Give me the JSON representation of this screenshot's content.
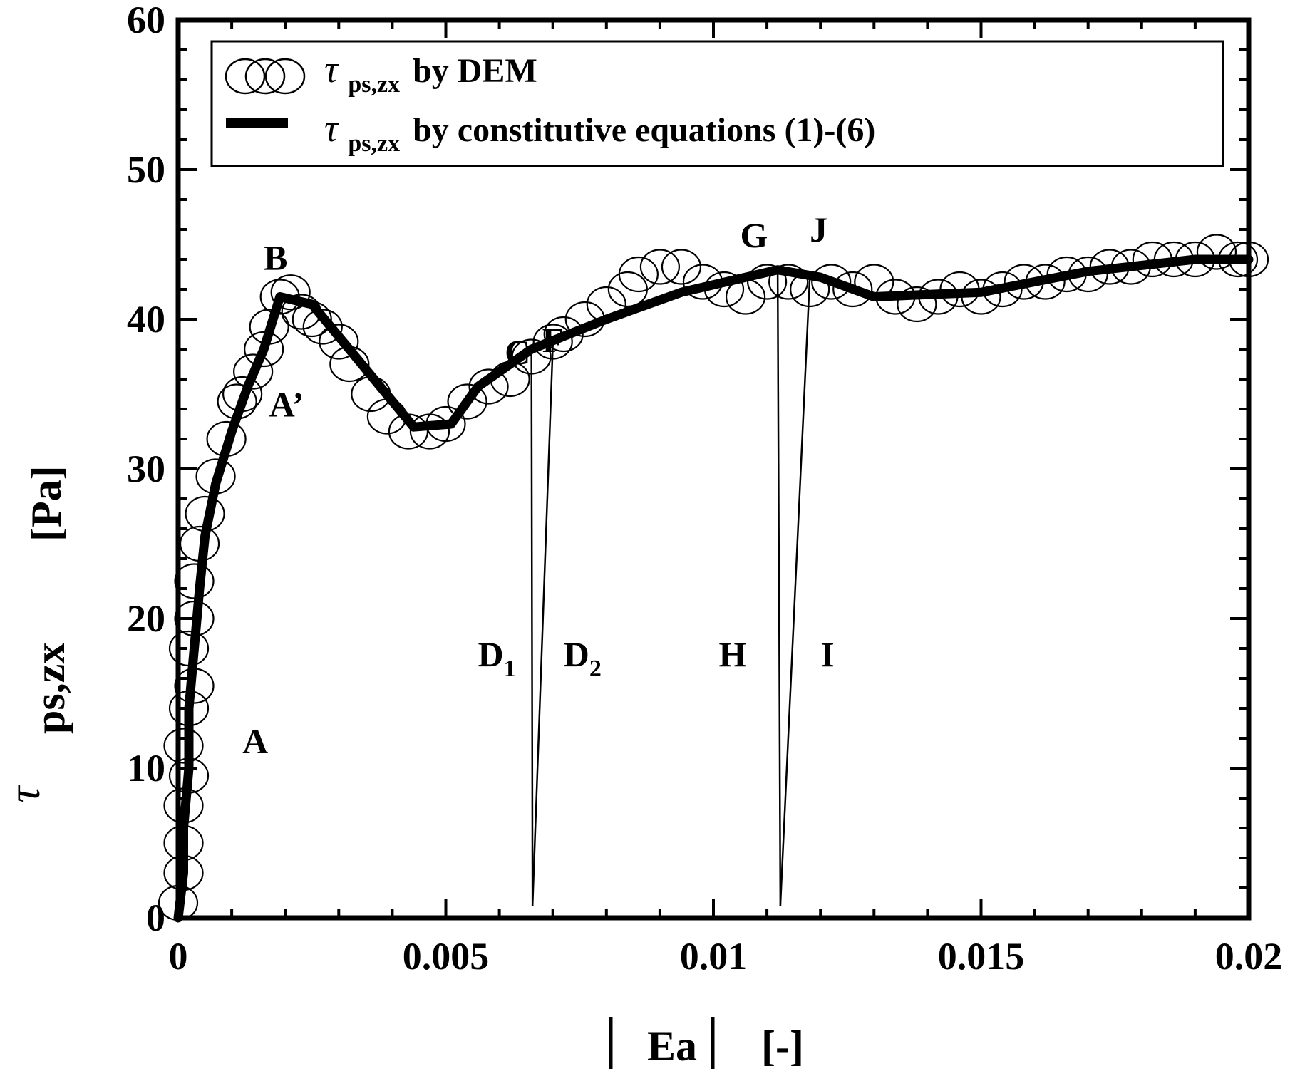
{
  "chart_data": {
    "type": "line",
    "xlabel": "|Ea|  [-]",
    "xlabel_parts": {
      "main": "Ea",
      "unit": "[-]"
    },
    "ylabel_parts": {
      "symbol": "τ",
      "sub": "ps,zx",
      "unit": "[Pa]"
    },
    "xlim": [
      0,
      0.02
    ],
    "ylim": [
      0,
      60
    ],
    "x_ticks": [
      0,
      0.005,
      0.01,
      0.015,
      0.02
    ],
    "x_tick_labels": [
      "0",
      "0.005",
      "0.01",
      "0.015",
      "0.02"
    ],
    "y_ticks": [
      0,
      10,
      20,
      30,
      40,
      50,
      60
    ],
    "y_tick_labels": [
      "0",
      "10",
      "20",
      "30",
      "40",
      "50",
      "60"
    ],
    "legend": {
      "placement": "top",
      "entries": [
        {
          "symbol": "τ",
          "sub": "ps,zx",
          "text": "by DEM",
          "marker": "circle"
        },
        {
          "symbol": "τ",
          "sub": "ps,zx",
          "text": "by constitutive equations (1)-(6)",
          "marker": "line"
        }
      ]
    },
    "series": [
      {
        "name": "by DEM",
        "style": "open-circle",
        "points": [
          [
            0.0,
            1.0
          ],
          [
            0.0001,
            3.0
          ],
          [
            0.0001,
            5.0
          ],
          [
            0.0001,
            7.5
          ],
          [
            0.0002,
            9.5
          ],
          [
            0.0001,
            11.5
          ],
          [
            0.0002,
            14.0
          ],
          [
            0.0003,
            15.5
          ],
          [
            0.0002,
            18.0
          ],
          [
            0.0003,
            20.0
          ],
          [
            0.0003,
            22.5
          ],
          [
            0.0004,
            25.0
          ],
          [
            0.0005,
            27.0
          ],
          [
            0.0007,
            29.5
          ],
          [
            0.0009,
            32.0
          ],
          [
            0.0011,
            34.5
          ],
          [
            0.0012,
            35.0
          ],
          [
            0.0014,
            36.5
          ],
          [
            0.0016,
            38.0
          ],
          [
            0.0017,
            39.5
          ],
          [
            0.0019,
            41.5
          ],
          [
            0.0021,
            41.8
          ],
          [
            0.0023,
            40.5
          ],
          [
            0.0025,
            40.0
          ],
          [
            0.0027,
            39.5
          ],
          [
            0.003,
            38.5
          ],
          [
            0.0032,
            37.0
          ],
          [
            0.0036,
            35.0
          ],
          [
            0.0039,
            33.5
          ],
          [
            0.0043,
            32.5
          ],
          [
            0.0047,
            32.5
          ],
          [
            0.005,
            33.0
          ],
          [
            0.0054,
            34.5
          ],
          [
            0.0058,
            35.5
          ],
          [
            0.0062,
            36.0
          ],
          [
            0.0066,
            37.5
          ],
          [
            0.007,
            38.5
          ],
          [
            0.0072,
            39.0
          ],
          [
            0.0076,
            40.0
          ],
          [
            0.008,
            41.0
          ],
          [
            0.0084,
            42.0
          ],
          [
            0.0086,
            43.0
          ],
          [
            0.009,
            43.5
          ],
          [
            0.0094,
            43.5
          ],
          [
            0.0098,
            42.5
          ],
          [
            0.0102,
            42.0
          ],
          [
            0.0106,
            41.5
          ],
          [
            0.011,
            42.5
          ],
          [
            0.0114,
            42.5
          ],
          [
            0.0118,
            42.0
          ],
          [
            0.0122,
            42.5
          ],
          [
            0.0126,
            42.0
          ],
          [
            0.013,
            42.5
          ],
          [
            0.0134,
            41.5
          ],
          [
            0.0138,
            41.0
          ],
          [
            0.0142,
            41.5
          ],
          [
            0.0146,
            42.0
          ],
          [
            0.015,
            41.5
          ],
          [
            0.0154,
            42.0
          ],
          [
            0.0158,
            42.5
          ],
          [
            0.0162,
            42.5
          ],
          [
            0.0166,
            43.0
          ],
          [
            0.017,
            43.0
          ],
          [
            0.0174,
            43.5
          ],
          [
            0.0178,
            43.5
          ],
          [
            0.0182,
            44.0
          ],
          [
            0.0186,
            44.0
          ],
          [
            0.019,
            44.0
          ],
          [
            0.0194,
            44.5
          ],
          [
            0.0198,
            44.0
          ],
          [
            0.02,
            44.0
          ]
        ]
      },
      {
        "name": "by constitutive equations (1)-(6)",
        "style": "thick-line",
        "points": [
          [
            0.0,
            0.0
          ],
          [
            0.0001,
            3.0
          ],
          [
            0.0001,
            6.0
          ],
          [
            0.0002,
            10.0
          ],
          [
            0.0002,
            14.0
          ],
          [
            0.0003,
            18.0
          ],
          [
            0.0004,
            22.0
          ],
          [
            0.0005,
            25.5
          ],
          [
            0.0007,
            29.0
          ],
          [
            0.001,
            32.5
          ],
          [
            0.0013,
            35.5
          ],
          [
            0.0016,
            38.0
          ],
          [
            0.0019,
            41.5
          ],
          [
            0.0025,
            41.0
          ],
          [
            0.0044,
            32.8
          ],
          [
            0.0051,
            33.0
          ],
          [
            0.0056,
            35.5
          ],
          [
            0.0066,
            38.0
          ],
          [
            0.008,
            40.0
          ],
          [
            0.0094,
            41.8
          ],
          [
            0.0112,
            43.3
          ],
          [
            0.012,
            42.8
          ],
          [
            0.013,
            41.5
          ],
          [
            0.015,
            41.8
          ],
          [
            0.017,
            43.2
          ],
          [
            0.019,
            44.0
          ],
          [
            0.02,
            44.0
          ]
        ]
      }
    ],
    "unloading_lines": [
      {
        "from": [
          0.0066,
          38.0
        ],
        "to": [
          0.00662,
          0.8
        ]
      },
      {
        "from": [
          0.007,
          38.3
        ],
        "to": [
          0.00662,
          0.8
        ]
      },
      {
        "from": [
          0.0112,
          43.3
        ],
        "to": [
          0.01125,
          0.8
        ]
      },
      {
        "from": [
          0.0118,
          42.8
        ],
        "to": [
          0.01125,
          0.8
        ]
      }
    ],
    "annotations": [
      {
        "text": "A",
        "x": 0.0012,
        "y": 11.0
      },
      {
        "text": "A’",
        "x": 0.0017,
        "y": 33.5
      },
      {
        "text": "B",
        "x": 0.0016,
        "y": 43.3
      },
      {
        "text": "C",
        "x": 0.0061,
        "y": 37.0
      },
      {
        "text": "F",
        "x": 0.0068,
        "y": 37.8
      },
      {
        "text": "G",
        "x": 0.0105,
        "y": 44.8
      },
      {
        "text": "J",
        "x": 0.0118,
        "y": 45.2
      },
      {
        "text": "D",
        "sub": "1",
        "x": 0.0056,
        "y": 16.8
      },
      {
        "text": "D",
        "sub": "2",
        "x": 0.0072,
        "y": 16.8
      },
      {
        "text": "H",
        "x": 0.0101,
        "y": 16.8
      },
      {
        "text": "I",
        "x": 0.012,
        "y": 16.8
      }
    ]
  }
}
